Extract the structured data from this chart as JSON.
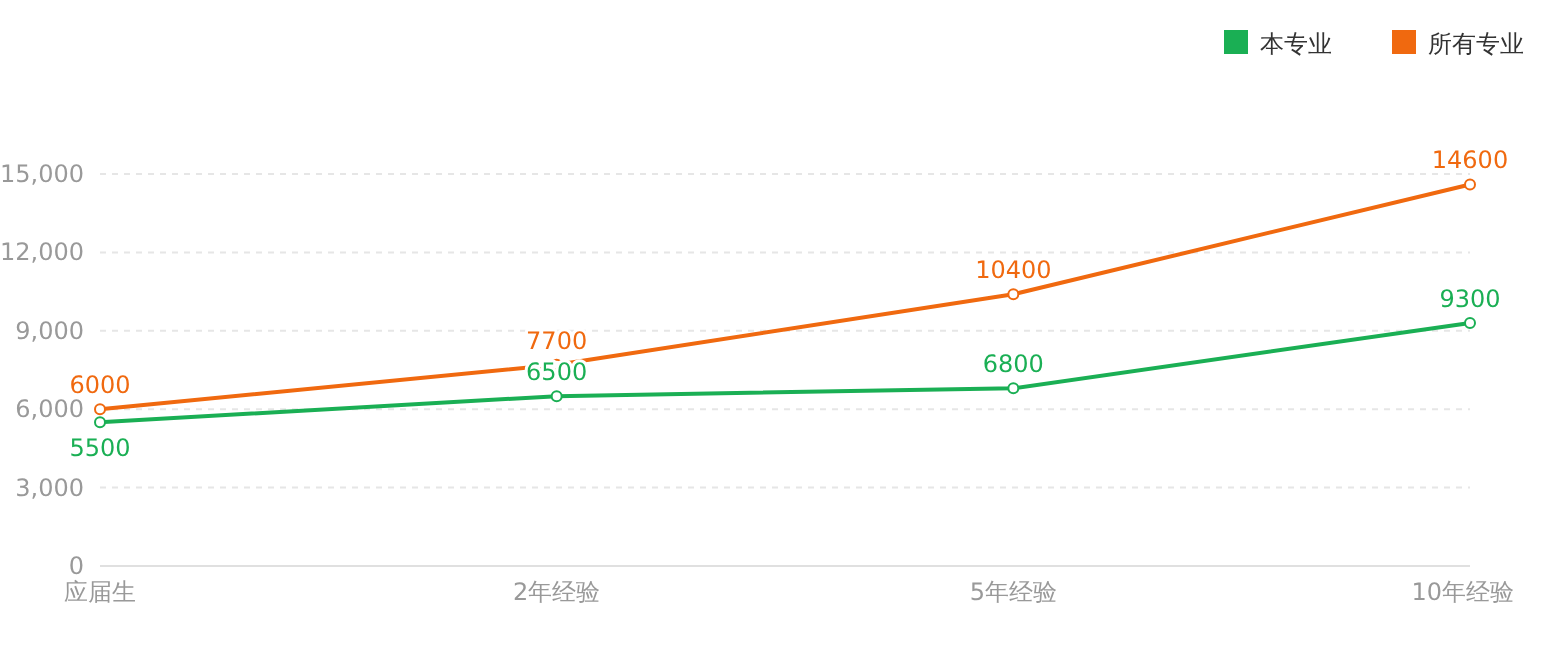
{
  "chart_data": {
    "type": "line",
    "categories": [
      "应届生",
      "2年经验",
      "5年经验",
      "10年经验"
    ],
    "series": [
      {
        "name": "本专业",
        "color": "#1aaf54",
        "values": [
          5500,
          6500,
          6800,
          9300
        ]
      },
      {
        "name": "所有专业",
        "color": "#f0690f",
        "values": [
          6000,
          7700,
          10400,
          14600
        ]
      }
    ],
    "ylim": [
      0,
      15000
    ],
    "yticks": [
      0,
      {
        "value": 3000,
        "label": "3,000"
      },
      {
        "value": 6000,
        "label": "6,000"
      },
      {
        "value": 9000,
        "label": "9,000"
      },
      {
        "value": 12000,
        "label": "12,000"
      },
      {
        "value": 15000,
        "label": "15,000"
      }
    ],
    "grid": "y",
    "legend": "top right",
    "marker": "circle",
    "data_labels": true
  }
}
